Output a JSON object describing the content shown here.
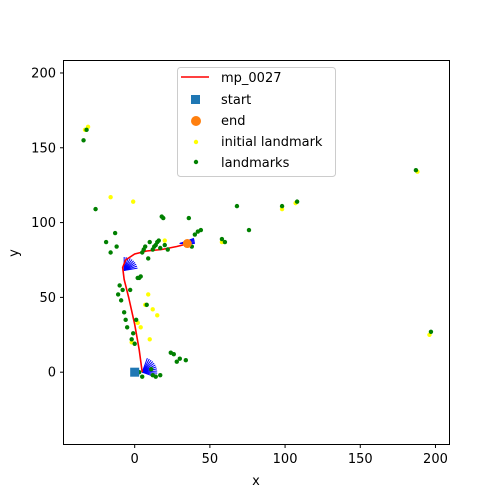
{
  "chart_data": {
    "type": "scatter",
    "title": "",
    "xlabel": "x",
    "ylabel": "y",
    "xlim": [
      -47,
      209
    ],
    "ylim": [
      -48,
      208
    ],
    "x_ticks": [
      0,
      50,
      100,
      150,
      200
    ],
    "y_ticks": [
      0,
      50,
      100,
      150,
      200
    ],
    "grid": false,
    "legend_position": "top-center",
    "series": [
      {
        "name": "mp_0027",
        "kind": "line",
        "color": "#ff0000",
        "x": [
          1,
          2,
          3,
          4,
          5,
          6,
          7,
          8
        ],
        "y": [
          0,
          0,
          0,
          0,
          0,
          0,
          0,
          0
        ]
      },
      {
        "name": "start",
        "kind": "square",
        "color": "#1f77b4",
        "x": [
          0
        ],
        "y": [
          0
        ]
      },
      {
        "name": "end",
        "kind": "circle",
        "color": "#ff7f0e",
        "x": [
          35
        ],
        "y": [
          86
        ]
      },
      {
        "name": "initial landmark",
        "kind": "point",
        "color": "#ffff00",
        "x": [
          -31,
          -33,
          -16,
          -1,
          9,
          7,
          12,
          15,
          4,
          58,
          98,
          107,
          196,
          188,
          -2,
          2,
          10,
          20
        ],
        "y": [
          164,
          162,
          117,
          114,
          52,
          45,
          42,
          38,
          30,
          87,
          109,
          113,
          25,
          134,
          20,
          33,
          22,
          88
        ]
      },
      {
        "name": "landmarks",
        "kind": "point",
        "color": "#008000",
        "x": [
          -34,
          -32,
          -26,
          -19,
          -16,
          -13,
          -12,
          -11,
          -10,
          -9,
          -8,
          -7,
          -6,
          -5,
          -3,
          -2,
          -1,
          0,
          1,
          2,
          3,
          4,
          5,
          6,
          7,
          8,
          9,
          10,
          11,
          12,
          13,
          14,
          15,
          16,
          17,
          18,
          19,
          20,
          22,
          24,
          26,
          28,
          30,
          34,
          36,
          38,
          40,
          42,
          44,
          58,
          60,
          68,
          76,
          98,
          108,
          187,
          197,
          3,
          5,
          12,
          14,
          17
        ],
        "y": [
          155,
          162,
          109,
          87,
          80,
          93,
          84,
          52,
          58,
          48,
          55,
          40,
          35,
          30,
          55,
          22,
          26,
          19,
          35,
          63,
          63,
          64,
          80,
          82,
          84,
          45,
          76,
          87,
          2,
          82,
          84,
          85,
          87,
          88,
          83,
          104,
          103,
          85,
          82,
          13,
          12,
          7,
          9,
          8,
          103,
          84,
          92,
          94,
          95,
          89,
          87,
          111,
          95,
          111,
          114,
          135,
          27,
          0,
          -3,
          -2,
          -3,
          -2
        ]
      }
    ]
  }
}
